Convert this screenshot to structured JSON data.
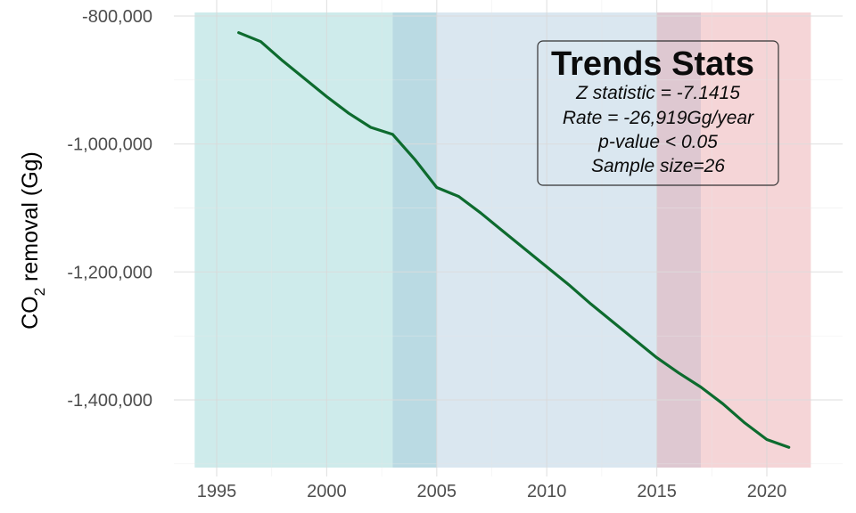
{
  "chart_data": {
    "type": "line",
    "title": "",
    "xlabel": "",
    "ylabel": "CO2 removal (Gg)",
    "ylabel_parts": {
      "pre": "CO",
      "sub": "2",
      "post": " removal (Gg)"
    },
    "xlim": [
      1994,
      2022
    ],
    "ylim": [
      -1510000,
      -795000
    ],
    "x_ticks": [
      1995,
      2000,
      2005,
      2010,
      2015,
      2020
    ],
    "x_tick_labels": [
      "1995",
      "2000",
      "2005",
      "2010",
      "2015",
      "2020"
    ],
    "y_ticks": [
      -800000,
      -1000000,
      -1200000,
      -1400000
    ],
    "y_tick_labels": [
      "-800,000",
      "-1,000,000",
      "-1,200,000",
      "-1,400,000"
    ],
    "grid": true,
    "legend": "none",
    "bands": [
      {
        "from": 1994,
        "to": 2003,
        "color": "#66c2c2",
        "opacity": 0.32
      },
      {
        "from": 2003,
        "to": 2005,
        "color": "#4a9eb5",
        "opacity": 0.38
      },
      {
        "from": 2005,
        "to": 2015,
        "color": "#9ebfd8",
        "opacity": 0.38
      },
      {
        "from": 2015,
        "to": 2017,
        "color": "#b07d92",
        "opacity": 0.42
      },
      {
        "from": 2017,
        "to": 2022,
        "color": "#e8a2a6",
        "opacity": 0.45
      }
    ],
    "series": [
      {
        "color": "#0d6b2e",
        "x": [
          1996,
          1997,
          1998,
          1999,
          2000,
          2001,
          2002,
          2003,
          2004,
          2005,
          2006,
          2007,
          2008,
          2009,
          2010,
          2011,
          2012,
          2013,
          2014,
          2015,
          2016,
          2017,
          2018,
          2019,
          2020,
          2021
        ],
        "y": [
          -826000,
          -840000,
          -870000,
          -898000,
          -926000,
          -952000,
          -974000,
          -985000,
          -1024000,
          -1068000,
          -1082000,
          -1108000,
          -1136000,
          -1164000,
          -1192000,
          -1220000,
          -1250000,
          -1278000,
          -1306000,
          -1334000,
          -1358000,
          -1380000,
          -1406000,
          -1436000,
          -1462000,
          -1474000
        ]
      }
    ],
    "annotation": {
      "title": "Trends Stats",
      "lines": [
        "Z statistic = -7.1415",
        "Rate = -26,919Gg/year",
        "p-value < 0.05",
        "Sample size=26"
      ]
    }
  }
}
